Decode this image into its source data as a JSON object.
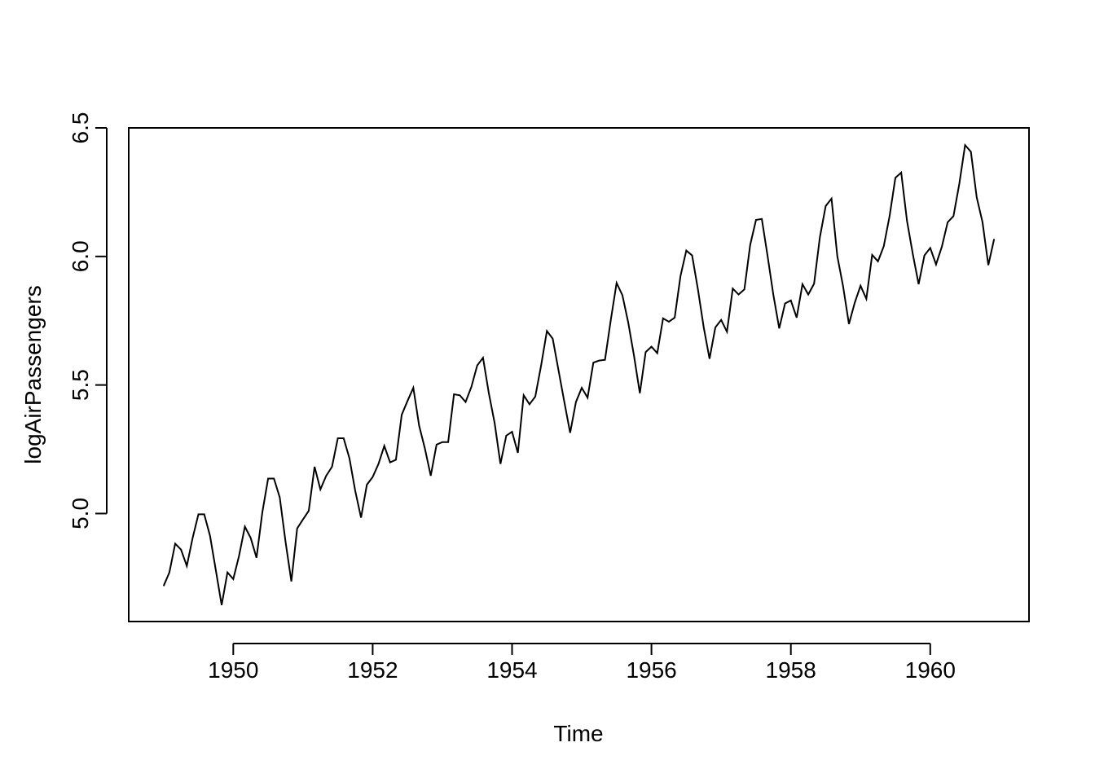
{
  "chart_data": {
    "type": "line",
    "xlabel": "Time",
    "ylabel": "logAirPassengers",
    "xlim": [
      1948.5,
      1961.417
    ],
    "ylim": [
      4.58,
      6.5
    ],
    "x_ticks": [
      1950,
      1952,
      1954,
      1956,
      1958,
      1960
    ],
    "y_ticks": [
      5.0,
      5.5,
      6.0,
      6.5
    ],
    "x_tick_labels": [
      "1950",
      "1952",
      "1954",
      "1956",
      "1958",
      "1960"
    ],
    "y_tick_labels": [
      "5.0",
      "5.5",
      "6.0",
      "6.5"
    ],
    "start": 1949,
    "frequency": 12,
    "series": [
      {
        "values": [
          4.718,
          4.771,
          4.883,
          4.86,
          4.796,
          4.905,
          4.997,
          4.997,
          4.913,
          4.779,
          4.644,
          4.771,
          4.745,
          4.836,
          4.949,
          4.905,
          4.828,
          5.004,
          5.136,
          5.136,
          5.063,
          4.89,
          4.736,
          4.942,
          4.977,
          5.011,
          5.182,
          5.094,
          5.147,
          5.182,
          5.293,
          5.293,
          5.215,
          5.088,
          4.984,
          5.112,
          5.142,
          5.193,
          5.263,
          5.199,
          5.209,
          5.384,
          5.438,
          5.489,
          5.342,
          5.252,
          5.147,
          5.268,
          5.278,
          5.278,
          5.464,
          5.46,
          5.434,
          5.493,
          5.576,
          5.606,
          5.468,
          5.352,
          5.193,
          5.303,
          5.318,
          5.236,
          5.46,
          5.425,
          5.455,
          5.576,
          5.71,
          5.68,
          5.557,
          5.434,
          5.314,
          5.434,
          5.489,
          5.451,
          5.587,
          5.595,
          5.598,
          5.753,
          5.897,
          5.849,
          5.743,
          5.613,
          5.468,
          5.628,
          5.649,
          5.624,
          5.759,
          5.746,
          5.762,
          5.924,
          6.023,
          6.004,
          5.872,
          5.724,
          5.602,
          5.724,
          5.753,
          5.707,
          5.875,
          5.852,
          5.872,
          6.045,
          6.142,
          6.146,
          6.001,
          5.849,
          5.72,
          5.817,
          5.829,
          5.762,
          5.892,
          5.852,
          5.894,
          6.075,
          6.196,
          6.225,
          6.001,
          5.883,
          5.737,
          5.82,
          5.886,
          5.835,
          6.006,
          5.981,
          6.04,
          6.157,
          6.306,
          6.326,
          6.138,
          6.009,
          5.892,
          6.004,
          6.033,
          5.969,
          6.038,
          6.133,
          6.157,
          6.282,
          6.433,
          6.407,
          6.23,
          6.133,
          5.966,
          6.068
        ]
      }
    ]
  }
}
